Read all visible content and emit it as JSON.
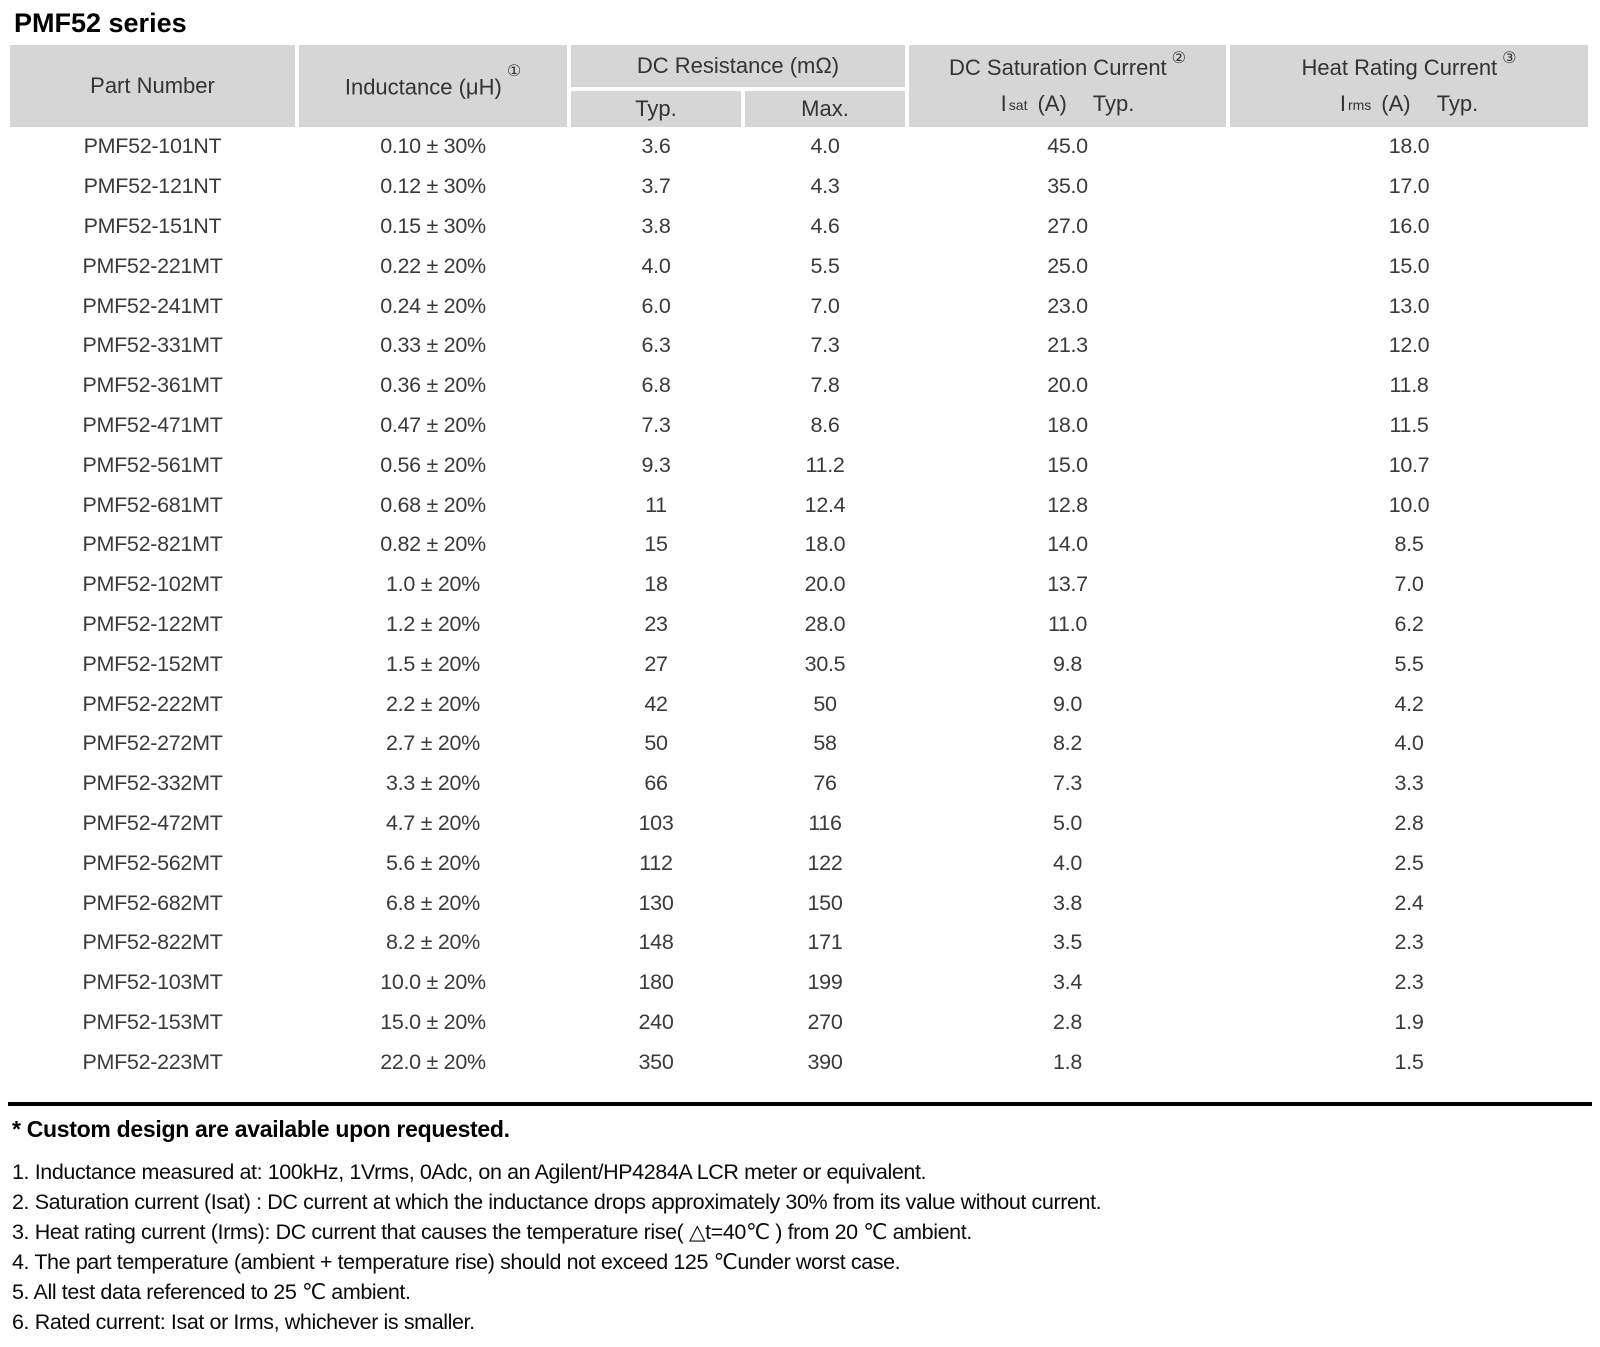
{
  "page": {
    "title": "PMF52 series"
  },
  "colors": {
    "header_bg": "#d6d6d6",
    "body_text": "#3a3a3a",
    "rule": "#000000"
  },
  "table": {
    "headers": {
      "part_number": "Part Number",
      "inductance": "Inductance (μH)",
      "inductance_sup": "①",
      "dc_resistance": "DC Resistance (mΩ)",
      "typ": "Typ.",
      "max": "Max.",
      "saturation_title": "DC Saturation Current",
      "saturation_sup": "②",
      "saturation_sym_base": "I",
      "saturation_sym_sub": "sat",
      "saturation_unit": "(A)",
      "saturation_typ": "Typ.",
      "heat_title": "Heat Rating Current",
      "heat_sup": "③",
      "heat_sym_base": "I",
      "heat_sym_sub": "rms",
      "heat_unit": "(A)",
      "heat_typ": "Typ."
    },
    "row_fields": [
      "part",
      "inductance",
      "dcr_typ",
      "dcr_max",
      "isat",
      "irms"
    ],
    "rows": [
      {
        "part": "PMF52-101NT",
        "inductance": "0.10 ± 30%",
        "dcr_typ": "3.6",
        "dcr_max": "4.0",
        "isat": "45.0",
        "irms": "18.0"
      },
      {
        "part": "PMF52-121NT",
        "inductance": "0.12 ± 30%",
        "dcr_typ": "3.7",
        "dcr_max": "4.3",
        "isat": "35.0",
        "irms": "17.0"
      },
      {
        "part": "PMF52-151NT",
        "inductance": "0.15 ± 30%",
        "dcr_typ": "3.8",
        "dcr_max": "4.6",
        "isat": "27.0",
        "irms": "16.0"
      },
      {
        "part": "PMF52-221MT",
        "inductance": "0.22 ± 20%",
        "dcr_typ": "4.0",
        "dcr_max": "5.5",
        "isat": "25.0",
        "irms": "15.0"
      },
      {
        "part": "PMF52-241MT",
        "inductance": "0.24 ± 20%",
        "dcr_typ": "6.0",
        "dcr_max": "7.0",
        "isat": "23.0",
        "irms": "13.0"
      },
      {
        "part": "PMF52-331MT",
        "inductance": "0.33 ± 20%",
        "dcr_typ": "6.3",
        "dcr_max": "7.3",
        "isat": "21.3",
        "irms": "12.0"
      },
      {
        "part": "PMF52-361MT",
        "inductance": "0.36 ± 20%",
        "dcr_typ": "6.8",
        "dcr_max": "7.8",
        "isat": "20.0",
        "irms": "11.8"
      },
      {
        "part": "PMF52-471MT",
        "inductance": "0.47 ± 20%",
        "dcr_typ": "7.3",
        "dcr_max": "8.6",
        "isat": "18.0",
        "irms": "11.5"
      },
      {
        "part": "PMF52-561MT",
        "inductance": "0.56 ± 20%",
        "dcr_typ": "9.3",
        "dcr_max": "11.2",
        "isat": "15.0",
        "irms": "10.7"
      },
      {
        "part": "PMF52-681MT",
        "inductance": "0.68 ± 20%",
        "dcr_typ": "11",
        "dcr_max": "12.4",
        "isat": "12.8",
        "irms": "10.0"
      },
      {
        "part": "PMF52-821MT",
        "inductance": "0.82 ± 20%",
        "dcr_typ": "15",
        "dcr_max": "18.0",
        "isat": "14.0",
        "irms": "8.5"
      },
      {
        "part": "PMF52-102MT",
        "inductance": "1.0 ± 20%",
        "dcr_typ": "18",
        "dcr_max": "20.0",
        "isat": "13.7",
        "irms": "7.0"
      },
      {
        "part": "PMF52-122MT",
        "inductance": "1.2 ± 20%",
        "dcr_typ": "23",
        "dcr_max": "28.0",
        "isat": "11.0",
        "irms": "6.2"
      },
      {
        "part": "PMF52-152MT",
        "inductance": "1.5 ± 20%",
        "dcr_typ": "27",
        "dcr_max": "30.5",
        "isat": "9.8",
        "irms": "5.5"
      },
      {
        "part": "PMF52-222MT",
        "inductance": "2.2 ± 20%",
        "dcr_typ": "42",
        "dcr_max": "50",
        "isat": "9.0",
        "irms": "4.2"
      },
      {
        "part": "PMF52-272MT",
        "inductance": "2.7 ± 20%",
        "dcr_typ": "50",
        "dcr_max": "58",
        "isat": "8.2",
        "irms": "4.0"
      },
      {
        "part": "PMF52-332MT",
        "inductance": "3.3 ± 20%",
        "dcr_typ": "66",
        "dcr_max": "76",
        "isat": "7.3",
        "irms": "3.3"
      },
      {
        "part": "PMF52-472MT",
        "inductance": "4.7 ± 20%",
        "dcr_typ": "103",
        "dcr_max": "116",
        "isat": "5.0",
        "irms": "2.8"
      },
      {
        "part": "PMF52-562MT",
        "inductance": "5.6 ± 20%",
        "dcr_typ": "112",
        "dcr_max": "122",
        "isat": "4.0",
        "irms": "2.5"
      },
      {
        "part": "PMF52-682MT",
        "inductance": "6.8 ± 20%",
        "dcr_typ": "130",
        "dcr_max": "150",
        "isat": "3.8",
        "irms": "2.4"
      },
      {
        "part": "PMF52-822MT",
        "inductance": "8.2 ± 20%",
        "dcr_typ": "148",
        "dcr_max": "171",
        "isat": "3.5",
        "irms": "2.3"
      },
      {
        "part": "PMF52-103MT",
        "inductance": "10.0 ± 20%",
        "dcr_typ": "180",
        "dcr_max": "199",
        "isat": "3.4",
        "irms": "2.3"
      },
      {
        "part": "PMF52-153MT",
        "inductance": "15.0 ± 20%",
        "dcr_typ": "240",
        "dcr_max": "270",
        "isat": "2.8",
        "irms": "1.9"
      },
      {
        "part": "PMF52-223MT",
        "inductance": "22.0 ± 20%",
        "dcr_typ": "350",
        "dcr_max": "390",
        "isat": "1.8",
        "irms": "1.5"
      }
    ]
  },
  "notes": {
    "custom": "* Custom design are available upon requested.",
    "items": [
      "1. Inductance measured at: 100kHz, 1Vrms, 0Adc, on an Agilent/HP4284A LCR meter or equivalent.",
      "2. Saturation current (Isat) : DC current at which the inductance drops approximately 30% from its value without current.",
      "3. Heat rating current (Irms): DC current that causes the temperature rise( △t=40℃ ) from 20 ℃ ambient.",
      "4. The part temperature (ambient + temperature rise) should not exceed 125 ℃under worst case.",
      "5. All test data referenced to 25 ℃ ambient.",
      "6. Rated current: Isat or Irms, whichever is smaller."
    ]
  }
}
